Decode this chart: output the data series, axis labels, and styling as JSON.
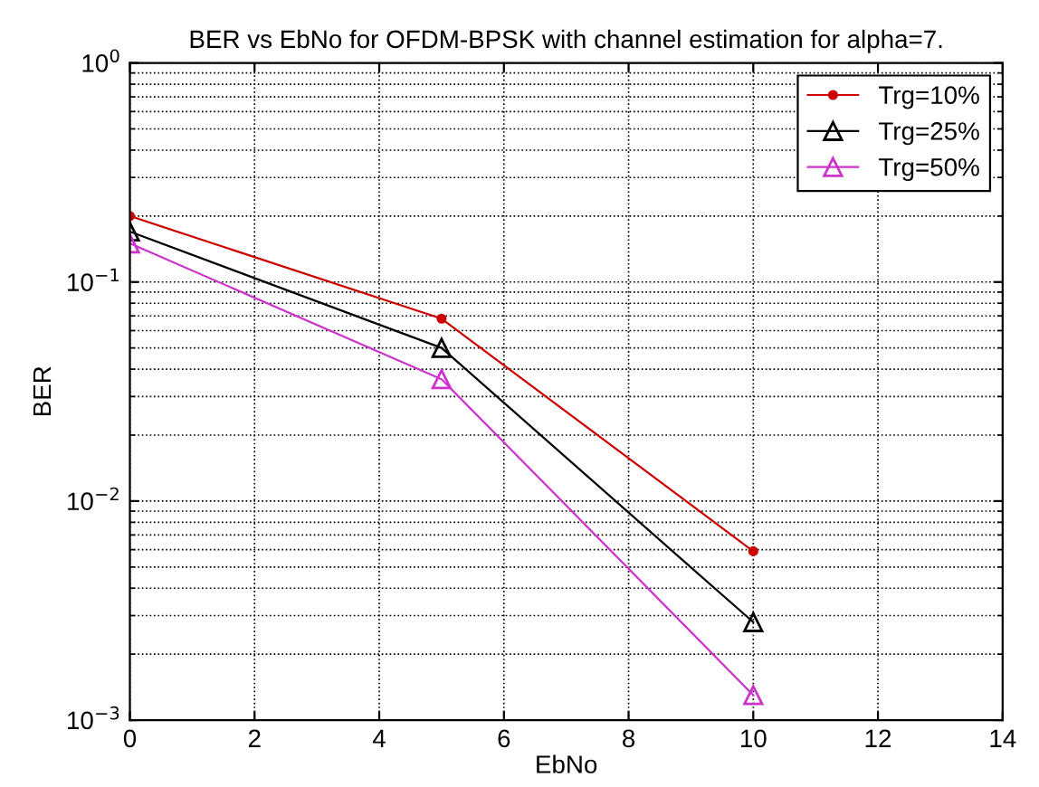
{
  "chart_data": {
    "type": "line",
    "title": "BER vs EbNo for OFDM-BPSK with channel estimation for alpha=7.",
    "xlabel": "EbNo",
    "ylabel": "BER",
    "log": "y",
    "x": [
      0,
      5,
      10
    ],
    "series": [
      {
        "name": "Trg=10%",
        "color": "#cc0000",
        "marker": "circle",
        "values": [
          0.2,
          0.068,
          0.0059
        ]
      },
      {
        "name": "Trg=25%",
        "color": "#000000",
        "marker": "triangle",
        "values": [
          0.17,
          0.05,
          0.0028
        ]
      },
      {
        "name": "Trg=50%",
        "color": "#cc33cc",
        "marker": "triangle",
        "values": [
          0.15,
          0.036,
          0.0013
        ]
      }
    ],
    "xlim": [
      0,
      14
    ],
    "xticks": [
      0,
      2,
      4,
      6,
      8,
      10,
      12,
      14
    ],
    "ylim": [
      0.001,
      1
    ],
    "yticks": [
      {
        "value": 0.001,
        "label": "10$^{−3}$"
      },
      {
        "value": 0.01,
        "label": "10$^{−2}$"
      },
      {
        "value": 0.1,
        "label": "10$^{−1}$"
      },
      {
        "value": 1,
        "label": "10$^{0}$"
      }
    ],
    "grid": true,
    "legend": "top right",
    "line_style": "solid"
  }
}
